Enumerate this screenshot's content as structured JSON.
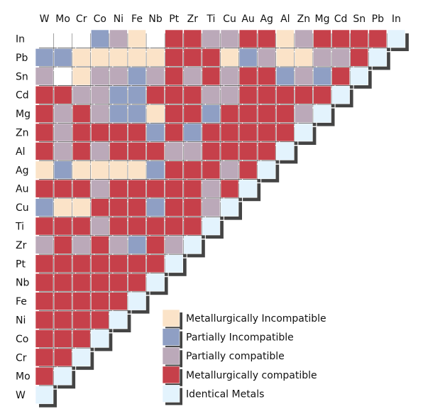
{
  "chart_data": {
    "type": "heatmap",
    "title": "",
    "xlabel": "",
    "ylabel": "",
    "columns": [
      "W",
      "Mo",
      "Cr",
      "Co",
      "Ni",
      "Fe",
      "Nb",
      "Pt",
      "Zr",
      "Ti",
      "Cu",
      "Au",
      "Ag",
      "Al",
      "Zn",
      "Mg",
      "Cd",
      "Sn",
      "Pb",
      "In"
    ],
    "rows": [
      "In",
      "Pb",
      "Sn",
      "Cd",
      "Mg",
      "Zn",
      "Al",
      "Ag",
      "Au",
      "Cu",
      "Ti",
      "Zr",
      "Pt",
      "Nb",
      "Fe",
      "Ni",
      "Co",
      "Cr",
      "Mo",
      "W"
    ],
    "categories": [
      {
        "code": "MI",
        "label": "Metallurgically Incompatible",
        "color": "#fbe3c8"
      },
      {
        "code": "PI",
        "label": "Partially Incompatible",
        "color": "#8f9fc4"
      },
      {
        "code": "PC",
        "label": "Partially compatible",
        "color": "#bba9b9"
      },
      {
        "code": "MC",
        "label": "Metallurgically compatible",
        "color": "#c6404a"
      },
      {
        "code": "ID",
        "label": "Identical Metals",
        "color": "#e3f3fd"
      }
    ],
    "unknown_color": "#ffffff",
    "pairs": [
      [
        "NA",
        "NA",
        "NA",
        "PI",
        "PC",
        "MI",
        "NA",
        "MC",
        "MC",
        "PC",
        "PC",
        "MC",
        "MC",
        "MI",
        "PC",
        "MC",
        "MC",
        "MC",
        "MC",
        "ID"
      ],
      [
        "PI",
        "PI",
        "MI",
        "MI",
        "MI",
        "MI",
        "MI",
        "MC",
        "MC",
        "MC",
        "MI",
        "PI",
        "PC",
        "MI",
        "MI",
        "PC",
        "PC",
        "MC",
        "ID"
      ],
      [
        "PC",
        "NA",
        "MI",
        "PC",
        "PC",
        "PI",
        "PC",
        "MC",
        "PC",
        "MC",
        "PC",
        "MC",
        "MC",
        "PI",
        "PC",
        "PI",
        "MC",
        "ID"
      ],
      [
        "MC",
        "MC",
        "PC",
        "PC",
        "PI",
        "PI",
        "MC",
        "MC",
        "MC",
        "PC",
        "PC",
        "MC",
        "MC",
        "MC",
        "MC",
        "MC",
        "ID"
      ],
      [
        "MC",
        "PC",
        "MC",
        "PC",
        "PI",
        "PI",
        "MI",
        "MC",
        "MC",
        "PI",
        "MC",
        "MC",
        "MC",
        "MC",
        "PC",
        "ID"
      ],
      [
        "MC",
        "PC",
        "MC",
        "MC",
        "MC",
        "MC",
        "PI",
        "MC",
        "PI",
        "MC",
        "MC",
        "MC",
        "MC",
        "MC",
        "ID"
      ],
      [
        "MC",
        "PC",
        "MC",
        "PC",
        "MC",
        "MC",
        "MC",
        "PC",
        "PC",
        "MC",
        "MC",
        "MC",
        "MC",
        "ID"
      ],
      [
        "MI",
        "PI",
        "MI",
        "MI",
        "MI",
        "MI",
        "PI",
        "MC",
        "MC",
        "MC",
        "PC",
        "MC",
        "ID"
      ],
      [
        "MC",
        "MC",
        "MC",
        "PC",
        "MC",
        "MC",
        "MC",
        "MC",
        "MC",
        "PC",
        "MC",
        "ID"
      ],
      [
        "PI",
        "MI",
        "MI",
        "MC",
        "MC",
        "MC",
        "PI",
        "MC",
        "MC",
        "PC",
        "ID"
      ],
      [
        "MC",
        "MC",
        "MC",
        "PC",
        "MC",
        "MC",
        "MC",
        "MC",
        "MC",
        "ID"
      ],
      [
        "PC",
        "MC",
        "PC",
        "MC",
        "PC",
        "PI",
        "MC",
        "PC",
        "ID"
      ],
      [
        "MC",
        "MC",
        "MC",
        "MC",
        "MC",
        "MC",
        "MC",
        "ID"
      ],
      [
        "MC",
        "MC",
        "MC",
        "MC",
        "MC",
        "MC",
        "ID"
      ],
      [
        "MC",
        "MC",
        "MC",
        "MC",
        "MC",
        "ID"
      ],
      [
        "MC",
        "MC",
        "MC",
        "MC",
        "ID"
      ],
      [
        "MC",
        "MC",
        "MC",
        "ID"
      ],
      [
        "MC",
        "MC",
        "ID"
      ],
      [
        "MC",
        "ID"
      ],
      [
        "ID"
      ]
    ],
    "legend_position": "bottom-right",
    "grid": true
  }
}
